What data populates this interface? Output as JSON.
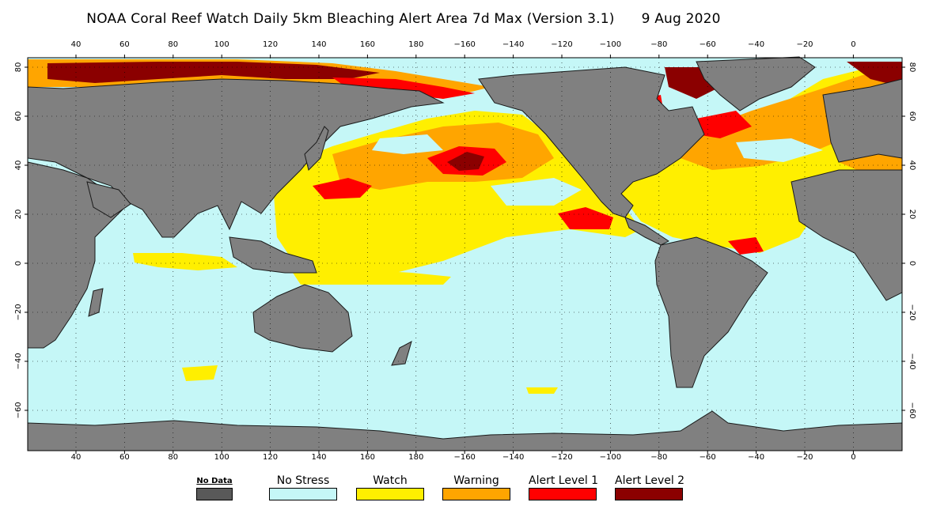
{
  "title": "NOAA Coral Reef Watch Daily 5km Bleaching Alert Area 7d Max (Version 3.1)",
  "date": "9 Aug 2020",
  "axes": {
    "lon_labels": [
      "40",
      "60",
      "80",
      "100",
      "120",
      "140",
      "160",
      "180",
      "−160",
      "−140",
      "−120",
      "−100",
      "−80",
      "−60",
      "−40",
      "−20",
      "0"
    ],
    "lat_left_labels": [
      "80",
      "60",
      "40",
      "20",
      "0",
      "−20",
      "−40",
      "−60"
    ],
    "lat_right_labels": [
      "80",
      "60",
      "40",
      "20",
      "0",
      "−20",
      "−40",
      "−60"
    ]
  },
  "legend": [
    {
      "label": "No Data",
      "color": "#595959"
    },
    {
      "label": "No Stress",
      "color": "#c5f7f7"
    },
    {
      "label": "Watch",
      "color": "#ffef00"
    },
    {
      "label": "Warning",
      "color": "#ffa500"
    },
    {
      "label": "Alert Level 1",
      "color": "#ff0000"
    },
    {
      "label": "Alert Level 2",
      "color": "#8b0000"
    }
  ],
  "colors": {
    "ocean": "#c5f7f7",
    "land": "#808080",
    "land_edge": "#1a1a1a",
    "watch": "#ffef00",
    "warning": "#ffa500",
    "alert1": "#ff0000",
    "alert2": "#8b0000"
  }
}
